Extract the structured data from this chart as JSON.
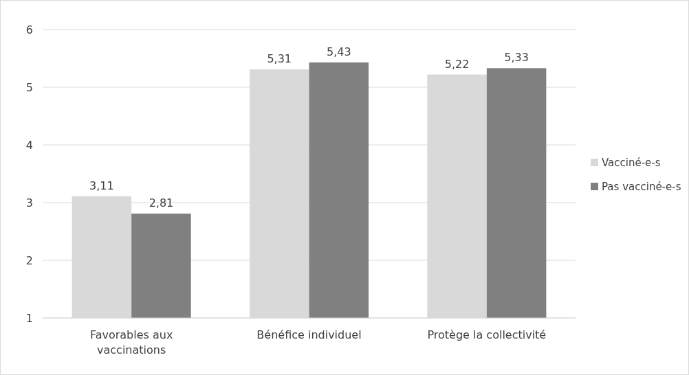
{
  "chart_data": {
    "type": "bar",
    "categories": [
      "Favorables aux vaccinations",
      "Bénéfice individuel",
      "Protège la collectivité"
    ],
    "series": [
      {
        "name": "Vacciné-e-s",
        "color": "#d9d9d9",
        "values": [
          3.11,
          5.31,
          5.22
        ],
        "value_labels": [
          "3,11",
          "5,31",
          "5,22"
        ]
      },
      {
        "name": "Pas vacciné-e-s",
        "color": "#808080",
        "values": [
          2.81,
          5.43,
          5.33
        ],
        "value_labels": [
          "2,81",
          "5,43",
          "5,33"
        ]
      }
    ],
    "ylim": [
      1,
      6
    ],
    "yticks": [
      1,
      2,
      3,
      4,
      5,
      6
    ],
    "grid": "y",
    "legend": "right"
  }
}
